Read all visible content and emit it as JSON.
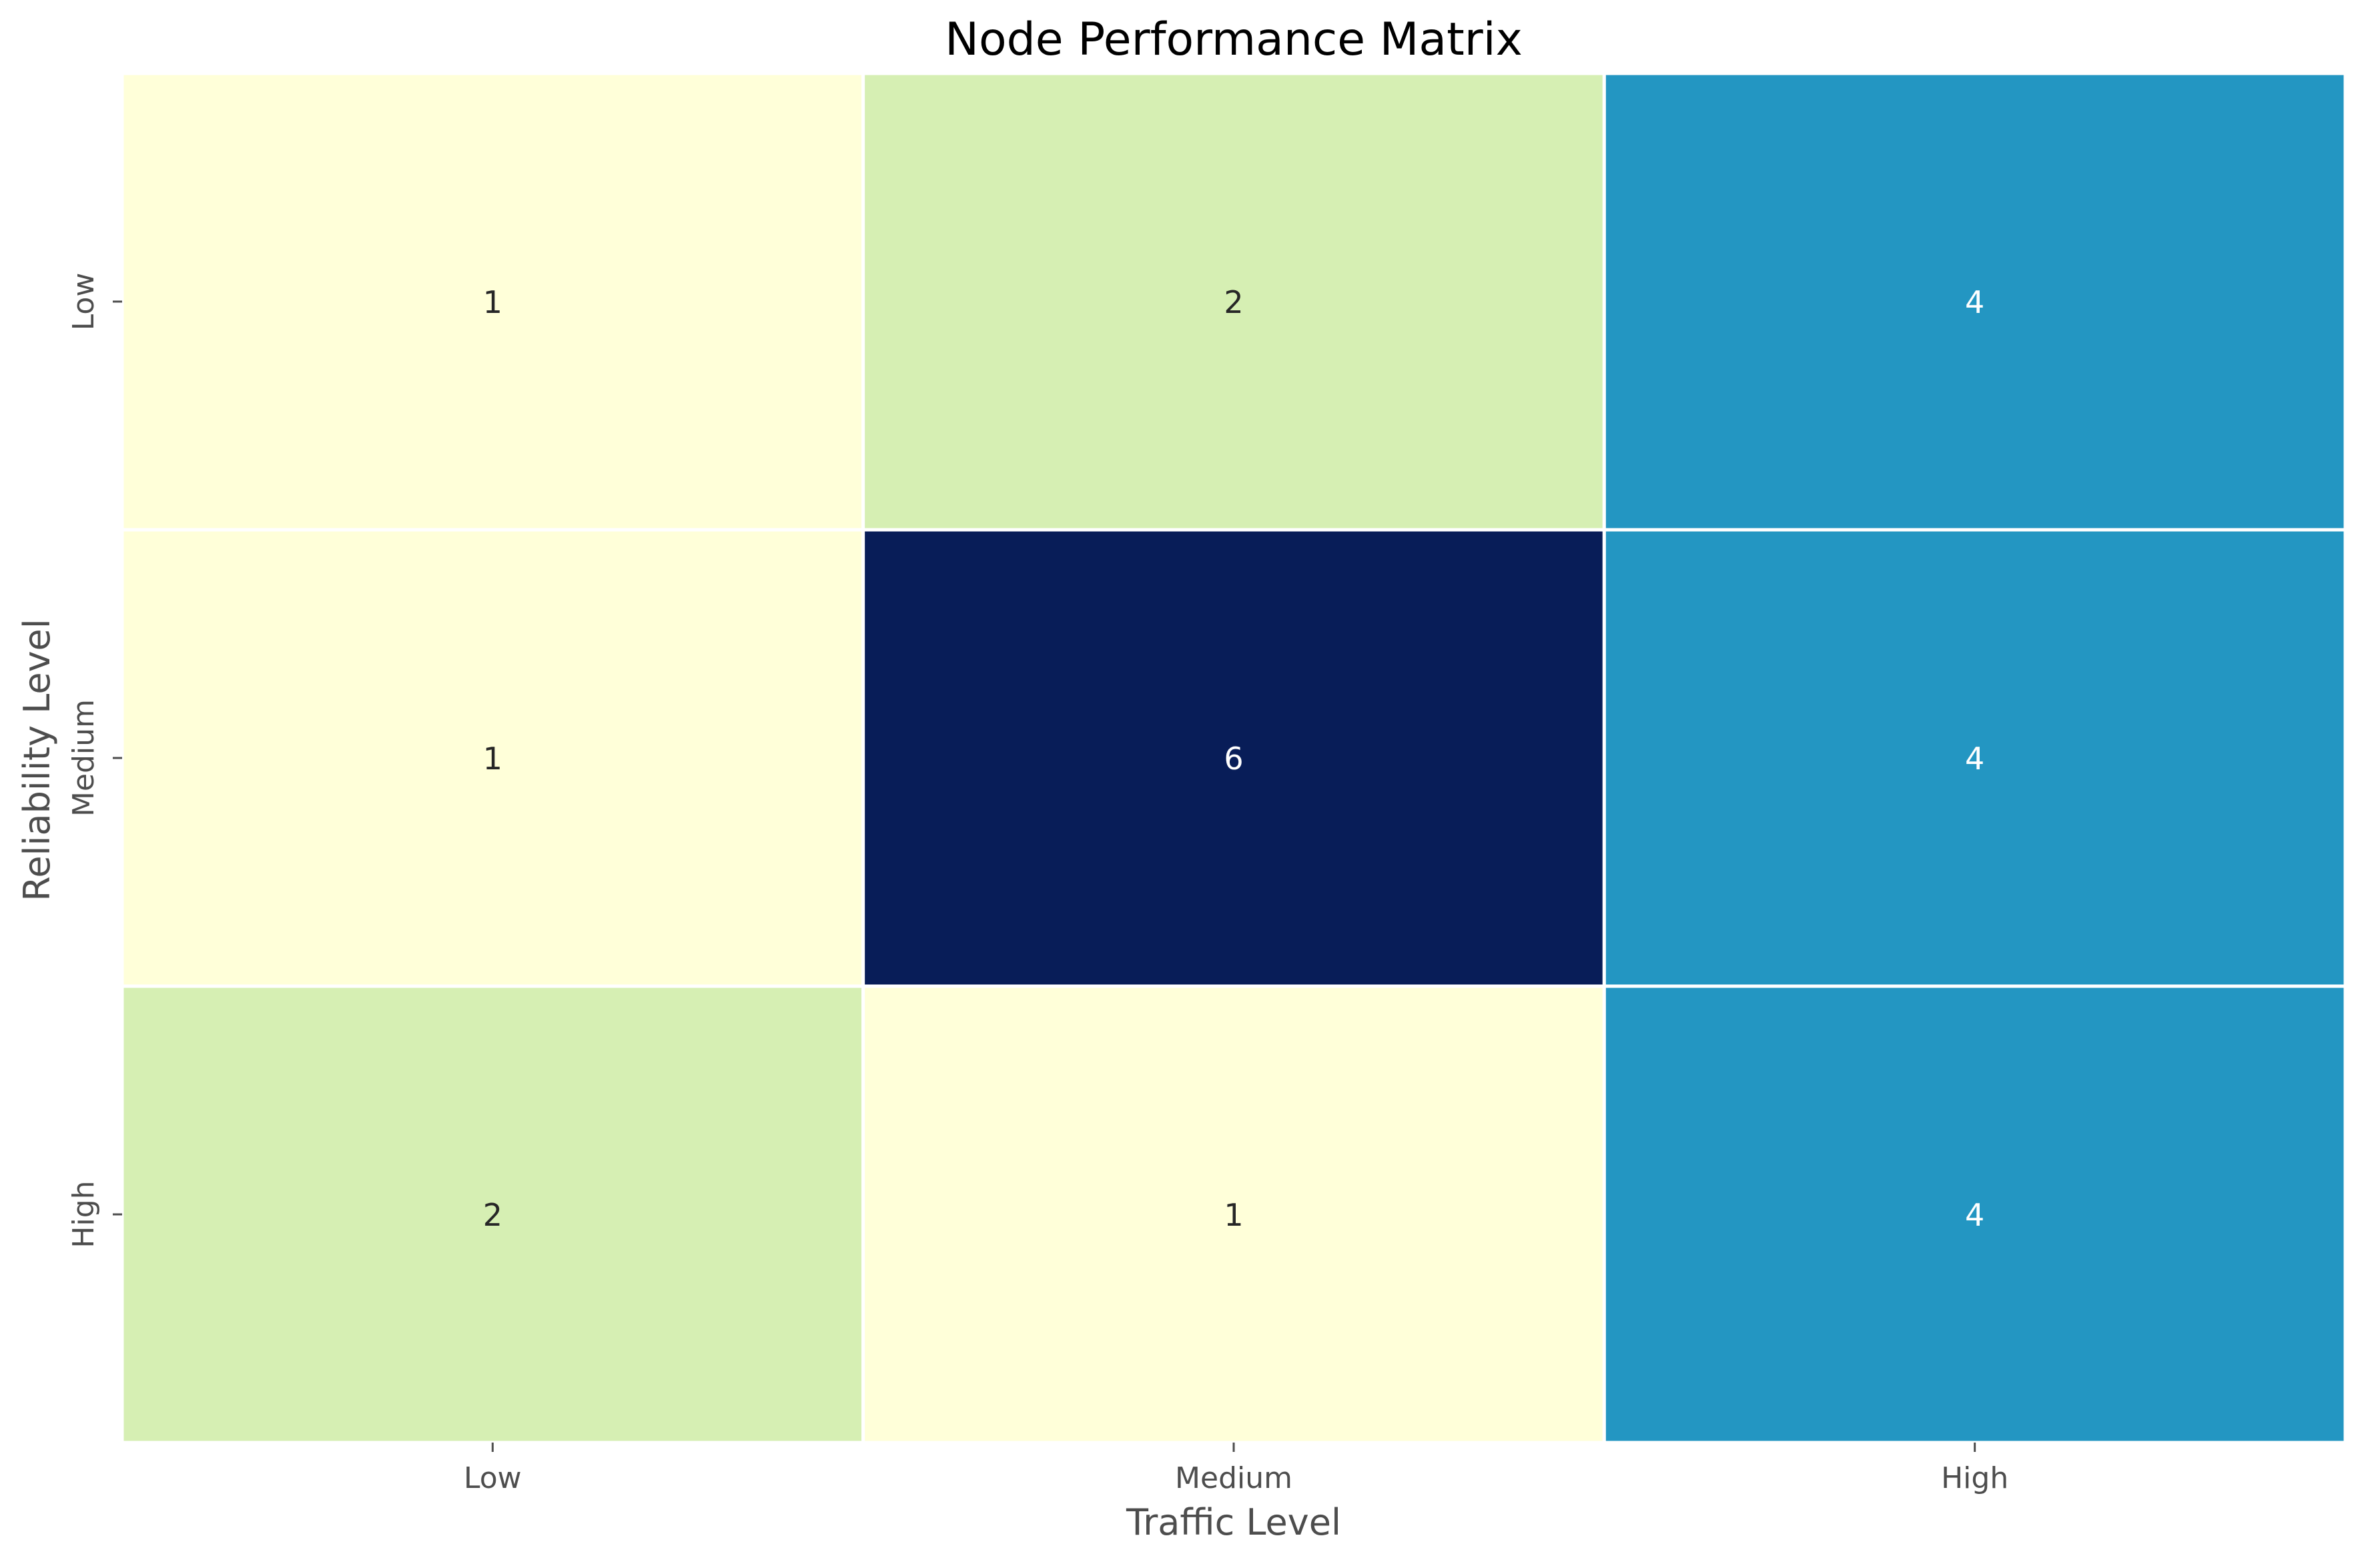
{
  "chart_data": {
    "type": "heatmap",
    "title": "Node Performance Matrix",
    "xlabel": "Traffic Level",
    "ylabel": "Reliability Level",
    "x_categories": [
      "Low",
      "Medium",
      "High"
    ],
    "y_categories": [
      "Low",
      "Medium",
      "High"
    ],
    "values": [
      [
        1,
        2,
        4
      ],
      [
        1,
        6,
        4
      ],
      [
        2,
        1,
        4
      ]
    ],
    "colormap": "YlGnBu",
    "value_range": [
      1,
      6
    ],
    "grid": false,
    "colorbar": false,
    "cell_border_color": "#ffffff",
    "colors": {
      "1": "#ffffd9",
      "2": "#d6efb3",
      "4": "#2396c2",
      "6": "#081d58"
    },
    "annotation_colors": {
      "dark": "#262626",
      "light": "#ffffff"
    },
    "axis_text_color": "#4d4d4d",
    "title_color": "#000000"
  }
}
